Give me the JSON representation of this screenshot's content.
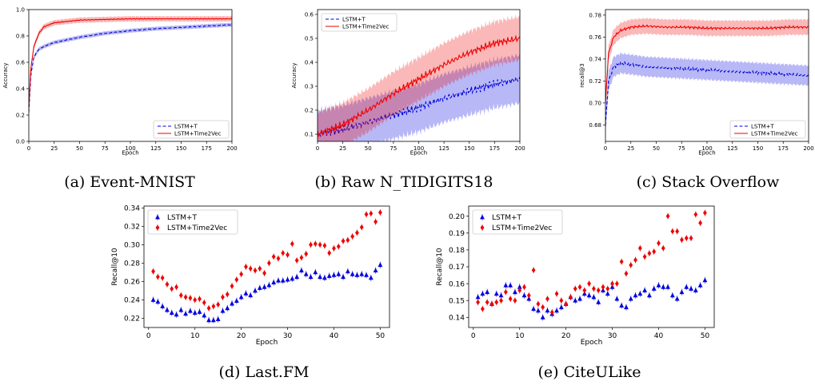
{
  "colors": {
    "baseline": "#0000dd",
    "time2vec": "#ee0000"
  },
  "legend_labels": {
    "baseline": "LSTM+T",
    "time2vec": "LSTM+Time2Vec"
  },
  "chart_data": [
    {
      "id": "a",
      "type": "line",
      "caption": "(a) Event-MNIST",
      "xlabel": "Epoch",
      "ylabel": "Accuracy",
      "xlim": [
        0,
        200
      ],
      "ylim": [
        0,
        1.0
      ],
      "xticks": [
        0,
        25,
        50,
        75,
        100,
        125,
        150,
        175,
        200
      ],
      "yticks": [
        0.0,
        0.2,
        0.4,
        0.6,
        0.8,
        1.0
      ],
      "legend_position": "lower-right",
      "series": [
        {
          "name": "LSTM+T",
          "style": "dashed",
          "band": 0.015,
          "x": [
            0,
            2,
            5,
            10,
            15,
            25,
            50,
            75,
            100,
            125,
            150,
            175,
            200
          ],
          "y": [
            0.22,
            0.5,
            0.64,
            0.7,
            0.72,
            0.75,
            0.79,
            0.82,
            0.84,
            0.855,
            0.865,
            0.875,
            0.885
          ]
        },
        {
          "name": "LSTM+Time2Vec",
          "style": "solid",
          "band": 0.02,
          "x": [
            0,
            2,
            5,
            10,
            15,
            25,
            50,
            75,
            100,
            125,
            150,
            175,
            200
          ],
          "y": [
            0.25,
            0.55,
            0.72,
            0.82,
            0.87,
            0.9,
            0.92,
            0.925,
            0.93,
            0.93,
            0.93,
            0.93,
            0.93
          ]
        }
      ]
    },
    {
      "id": "b",
      "type": "line",
      "caption": "(b) Raw N_TIDIGITS18",
      "xlabel": "Epoch",
      "ylabel": "Accuracy",
      "xlim": [
        0,
        200
      ],
      "ylim": [
        0.07,
        0.62
      ],
      "xticks": [
        0,
        25,
        50,
        75,
        100,
        125,
        150,
        175,
        200
      ],
      "yticks": [
        0.1,
        0.2,
        0.3,
        0.4,
        0.5,
        0.6
      ],
      "legend_position": "top-left",
      "series": [
        {
          "name": "LSTM+T",
          "style": "dashed",
          "band": 0.1,
          "x": [
            0,
            25,
            50,
            75,
            100,
            125,
            150,
            175,
            200
          ],
          "y": [
            0.1,
            0.12,
            0.15,
            0.18,
            0.21,
            0.25,
            0.28,
            0.31,
            0.33
          ]
        },
        {
          "name": "LSTM+Time2Vec",
          "style": "solid",
          "band": 0.09,
          "x": [
            0,
            25,
            50,
            75,
            100,
            125,
            150,
            175,
            200
          ],
          "y": [
            0.1,
            0.14,
            0.2,
            0.27,
            0.33,
            0.39,
            0.44,
            0.48,
            0.5
          ]
        }
      ]
    },
    {
      "id": "c",
      "type": "line",
      "caption": "(c) Stack Overflow",
      "xlabel": "Epoch",
      "ylabel": "recall@3",
      "xlim": [
        0,
        200
      ],
      "ylim": [
        0.665,
        0.785
      ],
      "xticks": [
        0,
        25,
        50,
        75,
        100,
        125,
        150,
        175,
        200
      ],
      "yticks": [
        0.68,
        0.7,
        0.72,
        0.74,
        0.76,
        0.78
      ],
      "legend_position": "lower-right",
      "series": [
        {
          "name": "LSTM+T",
          "style": "dashed",
          "band": 0.009,
          "x": [
            0,
            3,
            8,
            15,
            25,
            40,
            60,
            80,
            100,
            120,
            140,
            160,
            180,
            200
          ],
          "y": [
            0.68,
            0.72,
            0.733,
            0.736,
            0.735,
            0.733,
            0.732,
            0.731,
            0.73,
            0.729,
            0.728,
            0.727,
            0.726,
            0.725
          ]
        },
        {
          "name": "LSTM+Time2Vec",
          "style": "solid",
          "band": 0.007,
          "x": [
            0,
            3,
            8,
            15,
            25,
            40,
            60,
            80,
            100,
            120,
            140,
            160,
            180,
            200
          ],
          "y": [
            0.7,
            0.745,
            0.76,
            0.766,
            0.769,
            0.77,
            0.769,
            0.769,
            0.768,
            0.768,
            0.768,
            0.768,
            0.769,
            0.769
          ]
        }
      ]
    },
    {
      "id": "d",
      "type": "scatter",
      "caption": "(d) Last.FM",
      "xlabel": "Epoch",
      "ylabel": "Recall@10",
      "xlim": [
        -1,
        52
      ],
      "ylim": [
        0.21,
        0.342
      ],
      "xticks": [
        0,
        10,
        20,
        30,
        40,
        50
      ],
      "yticks": [
        0.22,
        0.24,
        0.26,
        0.28,
        0.3,
        0.32,
        0.34
      ],
      "legend_position": "top-left",
      "series": [
        {
          "name": "LSTM+T",
          "marker": "triangle",
          "x": [
            1,
            2,
            3,
            4,
            5,
            6,
            7,
            8,
            9,
            10,
            11,
            12,
            13,
            14,
            15,
            16,
            17,
            18,
            19,
            20,
            21,
            22,
            23,
            24,
            25,
            26,
            27,
            28,
            29,
            30,
            31,
            32,
            33,
            34,
            35,
            36,
            37,
            38,
            39,
            40,
            41,
            42,
            43,
            44,
            45,
            46,
            47,
            48,
            49,
            50
          ],
          "y": [
            0.24,
            0.238,
            0.233,
            0.229,
            0.226,
            0.224,
            0.229,
            0.225,
            0.228,
            0.226,
            0.227,
            0.223,
            0.218,
            0.218,
            0.219,
            0.228,
            0.231,
            0.236,
            0.239,
            0.243,
            0.247,
            0.245,
            0.25,
            0.253,
            0.254,
            0.256,
            0.259,
            0.261,
            0.261,
            0.262,
            0.263,
            0.265,
            0.272,
            0.268,
            0.265,
            0.27,
            0.265,
            0.264,
            0.266,
            0.267,
            0.268,
            0.265,
            0.271,
            0.268,
            0.267,
            0.268,
            0.267,
            0.264,
            0.272,
            0.278
          ]
        },
        {
          "name": "LSTM+Time2Vec",
          "marker": "diamond",
          "x": [
            1,
            2,
            3,
            4,
            5,
            6,
            7,
            8,
            9,
            10,
            11,
            12,
            13,
            14,
            15,
            16,
            17,
            18,
            19,
            20,
            21,
            22,
            23,
            24,
            25,
            26,
            27,
            28,
            29,
            30,
            31,
            32,
            33,
            34,
            35,
            36,
            37,
            38,
            39,
            40,
            41,
            42,
            43,
            44,
            45,
            46,
            47,
            48,
            49,
            50
          ],
          "y": [
            0.271,
            0.265,
            0.264,
            0.257,
            0.252,
            0.254,
            0.245,
            0.243,
            0.242,
            0.24,
            0.241,
            0.237,
            0.231,
            0.233,
            0.235,
            0.243,
            0.246,
            0.255,
            0.262,
            0.268,
            0.276,
            0.274,
            0.272,
            0.274,
            0.269,
            0.28,
            0.287,
            0.285,
            0.291,
            0.289,
            0.301,
            0.283,
            0.286,
            0.29,
            0.3,
            0.301,
            0.3,
            0.299,
            0.291,
            0.296,
            0.298,
            0.304,
            0.305,
            0.309,
            0.313,
            0.319,
            0.333,
            0.334,
            0.325,
            0.335
          ]
        }
      ]
    },
    {
      "id": "e",
      "type": "scatter",
      "caption": "(e) CiteULike",
      "xlabel": "Epoch",
      "ylabel": "Recall@10",
      "xlim": [
        -1,
        52
      ],
      "ylim": [
        0.134,
        0.206
      ],
      "xticks": [
        0,
        10,
        20,
        30,
        40,
        50
      ],
      "yticks": [
        0.14,
        0.15,
        0.16,
        0.17,
        0.18,
        0.19,
        0.2
      ],
      "legend_position": "top-left",
      "series": [
        {
          "name": "LSTM+T",
          "marker": "triangle",
          "x": [
            1,
            2,
            3,
            4,
            5,
            6,
            7,
            8,
            9,
            10,
            11,
            12,
            13,
            14,
            15,
            16,
            17,
            18,
            19,
            20,
            21,
            22,
            23,
            24,
            25,
            26,
            27,
            28,
            29,
            30,
            31,
            32,
            33,
            34,
            35,
            36,
            37,
            38,
            39,
            40,
            41,
            42,
            43,
            44,
            45,
            46,
            47,
            48,
            49,
            50
          ],
          "y": [
            0.152,
            0.154,
            0.155,
            0.148,
            0.154,
            0.153,
            0.159,
            0.159,
            0.155,
            0.158,
            0.153,
            0.151,
            0.145,
            0.144,
            0.14,
            0.144,
            0.142,
            0.144,
            0.146,
            0.148,
            0.152,
            0.15,
            0.151,
            0.154,
            0.153,
            0.152,
            0.149,
            0.156,
            0.154,
            0.158,
            0.151,
            0.147,
            0.146,
            0.151,
            0.153,
            0.154,
            0.156,
            0.153,
            0.157,
            0.159,
            0.158,
            0.158,
            0.153,
            0.151,
            0.155,
            0.158,
            0.157,
            0.156,
            0.159,
            0.162
          ]
        },
        {
          "name": "LSTM+Time2Vec",
          "marker": "diamond",
          "x": [
            1,
            2,
            3,
            4,
            5,
            6,
            7,
            8,
            9,
            10,
            11,
            12,
            13,
            14,
            15,
            16,
            17,
            18,
            19,
            20,
            21,
            22,
            23,
            24,
            25,
            26,
            27,
            28,
            29,
            30,
            31,
            32,
            33,
            34,
            35,
            36,
            37,
            38,
            39,
            40,
            41,
            42,
            43,
            44,
            45,
            46,
            47,
            48,
            49,
            50
          ],
          "y": [
            0.149,
            0.145,
            0.149,
            0.148,
            0.149,
            0.15,
            0.155,
            0.151,
            0.15,
            0.156,
            0.158,
            0.153,
            0.168,
            0.148,
            0.146,
            0.151,
            0.143,
            0.154,
            0.15,
            0.148,
            0.152,
            0.157,
            0.158,
            0.156,
            0.16,
            0.157,
            0.156,
            0.158,
            0.157,
            0.16,
            0.16,
            0.173,
            0.166,
            0.171,
            0.174,
            0.181,
            0.176,
            0.178,
            0.179,
            0.184,
            0.181,
            0.2,
            0.191,
            0.191,
            0.186,
            0.187,
            0.187,
            0.201,
            0.196,
            0.202
          ]
        }
      ]
    }
  ]
}
